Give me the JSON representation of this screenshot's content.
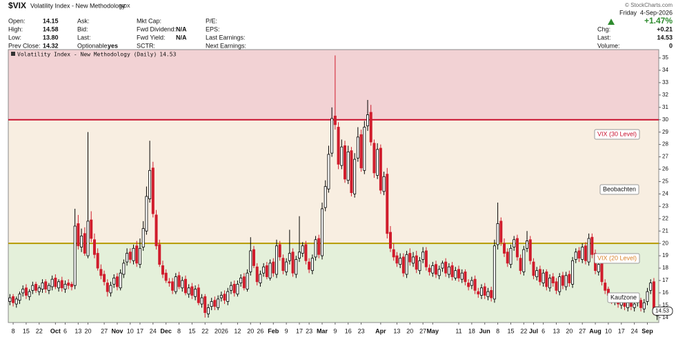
{
  "header": {
    "symbol": "$VIX",
    "name": "Volatility Index - New Methodology",
    "exchange": "INDX",
    "credit": "© StockCharts.com",
    "fields": [
      [
        {
          "label": "Open:",
          "value": "14.15"
        },
        {
          "label": "High:",
          "value": "14.58"
        },
        {
          "label": "Low:",
          "value": "13.80"
        },
        {
          "label": "Prev Close:",
          "value": "14.32"
        }
      ],
      [
        {
          "label": "Ask:"
        },
        {
          "label": "Bid:"
        },
        {
          "label": "Last:"
        },
        {
          "label": "Optionable:",
          "value": "yes"
        }
      ],
      [
        {
          "label": "Mkt Cap:"
        },
        {
          "label": "Fwd Dividend:",
          "value": "N/A"
        },
        {
          "label": "Fwd Yield:",
          "value": "N/A"
        },
        {
          "label": "SCTR:"
        }
      ],
      [
        {
          "label": "P/E:"
        },
        {
          "label": "EPS:"
        },
        {
          "label": "Last Earnings:"
        },
        {
          "label": "Next Earnings:"
        }
      ]
    ],
    "date": "Friday  4-Sep-2026",
    "change_pct": "+1.47%",
    "quote": [
      {
        "label": "Chg:",
        "value": "+0.21"
      },
      {
        "label": "Last:",
        "value": "14.53"
      },
      {
        "label": "Volume:",
        "value": "0"
      }
    ]
  },
  "chart_data": {
    "type": "candlestick",
    "legend": "Volatility Index - New Methodology (Daily)",
    "up_color": "#000000",
    "down_color": "#d01c2c",
    "ylim": [
      13.6,
      35.67
    ],
    "yticks": [
      14,
      15,
      16,
      17,
      18,
      19,
      20,
      21,
      22,
      23,
      24,
      25,
      26,
      27,
      28,
      29,
      30,
      31,
      32,
      33,
      34,
      35
    ],
    "y_axis_side": "right",
    "xlim": [
      -0.5,
      199.5
    ],
    "xticks": [
      {
        "value": 1,
        "label": "8"
      },
      {
        "value": 5,
        "label": "15"
      },
      {
        "value": 9,
        "label": "22"
      },
      {
        "value": 14,
        "label": "Oct"
      },
      {
        "value": 17,
        "label": "6"
      },
      {
        "value": 21,
        "label": "13"
      },
      {
        "value": 24,
        "label": "20"
      },
      {
        "value": 29,
        "label": "27"
      },
      {
        "value": 33,
        "label": "Nov"
      },
      {
        "value": 37,
        "label": "10"
      },
      {
        "value": 40,
        "label": "17"
      },
      {
        "value": 44,
        "label": "24"
      },
      {
        "value": 48,
        "label": "Dec"
      },
      {
        "value": 52,
        "label": "8"
      },
      {
        "value": 56,
        "label": "15"
      },
      {
        "value": 60,
        "label": "22"
      },
      {
        "value": 65,
        "label": "2026"
      },
      {
        "value": 70,
        "label": "12"
      },
      {
        "value": 74,
        "label": "20"
      },
      {
        "value": 77,
        "label": "26"
      },
      {
        "value": 81,
        "label": "Feb"
      },
      {
        "value": 85,
        "label": "9"
      },
      {
        "value": 89,
        "label": "17"
      },
      {
        "value": 92,
        "label": "23"
      },
      {
        "value": 96,
        "label": "Mar"
      },
      {
        "value": 100,
        "label": "9"
      },
      {
        "value": 104,
        "label": "16"
      },
      {
        "value": 108,
        "label": "23"
      },
      {
        "value": 114,
        "label": "Apr"
      },
      {
        "value": 119,
        "label": "13"
      },
      {
        "value": 123,
        "label": "20"
      },
      {
        "value": 127,
        "label": "27"
      },
      {
        "value": 130,
        "label": "May"
      },
      {
        "value": 138,
        "label": "11"
      },
      {
        "value": 142,
        "label": "18"
      },
      {
        "value": 146,
        "label": "Jun"
      },
      {
        "value": 150,
        "label": "8"
      },
      {
        "value": 154,
        "label": "15"
      },
      {
        "value": 158,
        "label": "22"
      },
      {
        "value": 161,
        "label": "Jul"
      },
      {
        "value": 164,
        "label": "6"
      },
      {
        "value": 168,
        "label": "13"
      },
      {
        "value": 172,
        "label": "20"
      },
      {
        "value": 176,
        "label": "27"
      },
      {
        "value": 180,
        "label": "Aug"
      },
      {
        "value": 184,
        "label": "10"
      },
      {
        "value": 188,
        "label": "17"
      },
      {
        "value": 192,
        "label": "24"
      },
      {
        "value": 196,
        "label": "Sep"
      }
    ],
    "levels": [
      {
        "value": 30,
        "label": "VIX (30 Level)",
        "color": "#c8102e",
        "zone_above_color": "#f2d2d4"
      },
      {
        "value": 20,
        "label": "VIX (20 Level)",
        "color": "#b59a00",
        "label_color": "#d9822b",
        "zone_above_color": "#f8eee1",
        "zone_below_color": "#e4f0da"
      }
    ],
    "annotations": [
      "Beobachten",
      "Kaufzone"
    ],
    "open": [
      15.3,
      15.7,
      15.1,
      15.4,
      16.0,
      16.4,
      15.7,
      16.2,
      16.7,
      16.1,
      16.3,
      16.9,
      16.2,
      16.5,
      17.2,
      16.4,
      17.0,
      16.3,
      16.8,
      16.7,
      16.6,
      21.6,
      19.7,
      20.8,
      19.0,
      21.9,
      20.3,
      19.2,
      17.9,
      17.5,
      16.8,
      16.0,
      16.7,
      17.3,
      16.4,
      17.5,
      18.5,
      19.3,
      18.6,
      19.8,
      18.3,
      19.7,
      21.0,
      23.6,
      26.1,
      22.3,
      19.9,
      18.2,
      17.6,
      16.9,
      16.9,
      16.1,
      17.4,
      16.4,
      17.1,
      15.9,
      16.5,
      15.7,
      16.4,
      15.1,
      15.7,
      14.3,
      14.9,
      15.4,
      14.8,
      15.6,
      15.9,
      15.3,
      16.2,
      16.7,
      15.9,
      16.8,
      17.3,
      16.3,
      17.7,
      19.5,
      18.1,
      16.8,
      17.6,
      18.2,
      17.2,
      18.5,
      17.5,
      19.9,
      18.8,
      17.7,
      18.6,
      19.3,
      17.5,
      18.8,
      19.2,
      19.9,
      18.5,
      17.8,
      18.9,
      20.4,
      19.0,
      22.9,
      24.4,
      27.3,
      30.3,
      29.4,
      26.3,
      27.9,
      25.1,
      27.5,
      24.0,
      26.9,
      28.8,
      25.9,
      29.5,
      30.6,
      28.1,
      25.5,
      27.7,
      24.2,
      25.6,
      20.9,
      19.5,
      19.0,
      18.3,
      18.9,
      17.5,
      19.2,
      18.4,
      19.0,
      17.8,
      18.7,
      19.4,
      18.0,
      17.6,
      18.3,
      17.4,
      18.0,
      18.5,
      17.5,
      18.2,
      17.2,
      17.9,
      17.1,
      17.7,
      16.8,
      16.6,
      17.1,
      16.1,
      15.8,
      16.5,
      15.7,
      16.2,
      15.5,
      19.9,
      21.8,
      20.0,
      19.3,
      18.3,
      19.7,
      20.4,
      18.8,
      17.7,
      19.6,
      20.3,
      18.5,
      17.3,
      17.9,
      16.8,
      17.7,
      16.4,
      17.3,
      16.9,
      16.1,
      17.4,
      16.5,
      17.5,
      16.7,
      18.7,
      19.4,
      18.7,
      19.8,
      18.5,
      20.5,
      19.2,
      17.7,
      18.4,
      16.8,
      16.3,
      15.7,
      15.3,
      15.7,
      15.0,
      15.4,
      14.8,
      15.3,
      14.8,
      15.2,
      15.4,
      14.7,
      15.3,
      16.2,
      16.9,
      14.15
    ],
    "high": [
      15.9,
      15.9,
      15.7,
      16.1,
      16.6,
      16.7,
      16.3,
      16.9,
      16.9,
      16.6,
      17.1,
      17.1,
      16.8,
      17.4,
      17.5,
      17.1,
      17.3,
      17.0,
      17.1,
      16.9,
      22.8,
      22.3,
      21.2,
      21.3,
      29.0,
      22.6,
      20.8,
      19.6,
      18.3,
      17.8,
      17.1,
      16.9,
      17.5,
      17.6,
      17.9,
      18.7,
      19.6,
      19.6,
      19.9,
      20.2,
      20.4,
      21.8,
      24.6,
      28.3,
      26.6,
      22.7,
      20.3,
      18.6,
      17.9,
      17.2,
      17.2,
      17.6,
      17.7,
      17.3,
      17.4,
      16.7,
      16.8,
      16.6,
      16.7,
      15.9,
      15.9,
      15.1,
      15.6,
      15.7,
      15.8,
      16.1,
      16.2,
      16.4,
      16.9,
      17.0,
      17.0,
      17.5,
      17.6,
      17.9,
      20.5,
      19.8,
      18.4,
      17.8,
      18.4,
      18.5,
      18.7,
      18.8,
      20.3,
      20.2,
      19.1,
      18.8,
      21.1,
      19.6,
      19.0,
      22.2,
      20.1,
      20.2,
      18.8,
      19.1,
      20.6,
      20.7,
      23.3,
      25.1,
      27.9,
      31.0,
      35.2,
      29.8,
      28.4,
      28.3,
      27.9,
      27.8,
      27.3,
      29.4,
      29.2,
      29.9,
      31.6,
      31.2,
      28.4,
      28.1,
      28.0,
      25.8,
      26.1,
      21.4,
      20.0,
      19.3,
      19.2,
      19.2,
      19.4,
      19.6,
      19.3,
      19.4,
      18.9,
      19.7,
      19.7,
      18.3,
      18.5,
      18.6,
      18.2,
      18.6,
      18.8,
      18.4,
      18.5,
      18.1,
      18.2,
      17.9,
      17.9,
      17.1,
      17.3,
      17.4,
      16.4,
      16.7,
      16.8,
      16.4,
      16.5,
      20.3,
      23.3,
      22.1,
      20.4,
      19.6,
      19.9,
      20.6,
      20.7,
      19.1,
      19.8,
      21.0,
      20.6,
      18.8,
      18.1,
      18.2,
      17.9,
      17.9,
      17.5,
      17.6,
      17.2,
      17.6,
      17.7,
      17.7,
      17.8,
      18.9,
      19.6,
      19.7,
      20.0,
      20.1,
      20.8,
      20.8,
      19.5,
      18.6,
      18.6,
      17.1,
      16.5,
      16.0,
      15.9,
      15.9,
      15.6,
      15.6,
      15.5,
      15.6,
      15.4,
      15.6,
      15.6,
      15.5,
      16.4,
      17.1,
      17.2,
      14.58
    ],
    "low": [
      15.0,
      14.9,
      14.8,
      15.1,
      15.7,
      15.5,
      15.4,
      15.9,
      16.0,
      15.8,
      16.0,
      16.0,
      15.9,
      16.2,
      16.3,
      16.1,
      16.1,
      16.0,
      16.3,
      16.2,
      16.3,
      19.5,
      19.3,
      19.0,
      18.8,
      20.1,
      18.8,
      17.8,
      17.1,
      16.6,
      15.7,
      15.7,
      16.4,
      16.2,
      16.2,
      17.2,
      18.2,
      18.4,
      18.3,
      18.1,
      18.0,
      19.4,
      20.7,
      23.3,
      22.1,
      19.5,
      18.1,
      17.2,
      16.8,
      16.5,
      15.9,
      15.9,
      16.3,
      16.1,
      15.8,
      15.6,
      15.5,
      15.4,
      15.0,
      14.8,
      14.0,
      14.0,
      14.6,
      14.6,
      14.6,
      15.3,
      15.1,
      15.0,
      15.9,
      15.7,
      15.7,
      16.5,
      16.2,
      16.1,
      17.4,
      18.0,
      16.6,
      16.5,
      17.3,
      17.1,
      17.0,
      17.3,
      17.2,
      18.6,
      17.5,
      17.4,
      18.3,
      17.3,
      17.2,
      18.5,
      18.9,
      18.3,
      17.6,
      17.5,
      18.6,
      18.8,
      18.7,
      22.6,
      24.1,
      27.0,
      29.2,
      26.0,
      26.0,
      24.9,
      24.8,
      23.8,
      23.7,
      26.6,
      25.8,
      25.6,
      29.1,
      27.9,
      25.3,
      25.2,
      24.0,
      23.9,
      20.4,
      19.3,
      18.6,
      18.1,
      18.0,
      17.3,
      17.2,
      18.2,
      18.1,
      17.6,
      17.5,
      18.4,
      17.8,
      17.4,
      17.3,
      17.2,
      17.1,
      17.7,
      17.3,
      17.2,
      17.0,
      17.0,
      16.9,
      16.8,
      16.6,
      16.2,
      16.3,
      15.9,
      15.6,
      15.5,
      15.5,
      15.4,
      15.3,
      15.2,
      19.5,
      19.8,
      18.9,
      18.1,
      18.0,
      19.4,
      18.6,
      17.5,
      17.4,
      19.3,
      18.3,
      17.1,
      17.0,
      16.6,
      16.5,
      16.2,
      16.1,
      16.5,
      15.9,
      15.8,
      16.3,
      16.2,
      16.5,
      16.4,
      18.4,
      18.5,
      18.4,
      18.3,
      18.2,
      18.8,
      17.5,
      17.4,
      16.6,
      15.9,
      15.5,
      15.1,
      15.0,
      14.8,
      14.7,
      14.6,
      14.5,
      14.6,
      14.5,
      14.9,
      14.5,
      14.4,
      15.0,
      15.9,
      14.2,
      13.8
    ],
    "close": [
      15.6,
      15.2,
      15.5,
      15.9,
      16.3,
      15.8,
      16.1,
      16.6,
      16.2,
      16.4,
      16.8,
      16.3,
      16.6,
      17.1,
      16.5,
      16.9,
      16.4,
      16.7,
      16.6,
      16.5,
      21.4,
      19.8,
      20.6,
      19.2,
      21.8,
      20.4,
      19.1,
      18.0,
      17.4,
      16.9,
      16.1,
      16.6,
      17.2,
      16.5,
      17.6,
      18.4,
      19.2,
      18.7,
      19.6,
      18.4,
      19.6,
      21.2,
      23.8,
      25.9,
      22.4,
      19.8,
      18.3,
      17.5,
      17.0,
      16.8,
      16.2,
      17.3,
      16.5,
      17.0,
      16.0,
      16.4,
      15.8,
      16.3,
      15.2,
      15.6,
      14.4,
      14.8,
      15.3,
      14.9,
      15.5,
      15.8,
      15.4,
      16.1,
      16.6,
      16.0,
      16.7,
      17.2,
      16.4,
      17.6,
      19.4,
      18.2,
      16.9,
      17.5,
      18.1,
      17.3,
      18.4,
      17.6,
      19.8,
      18.9,
      17.8,
      18.5,
      19.2,
      17.6,
      18.7,
      19.3,
      19.8,
      18.6,
      17.9,
      18.8,
      20.3,
      19.1,
      22.8,
      24.6,
      27.2,
      30.1,
      29.6,
      26.4,
      27.8,
      25.2,
      27.4,
      24.1,
      26.8,
      28.6,
      26.1,
      29.4,
      30.4,
      28.2,
      25.7,
      27.6,
      24.3,
      25.4,
      20.8,
      19.6,
      18.9,
      18.4,
      18.8,
      17.6,
      19.1,
      18.5,
      18.9,
      17.9,
      18.6,
      19.3,
      18.1,
      17.7,
      18.2,
      17.5,
      17.9,
      18.4,
      17.6,
      18.1,
      17.3,
      17.8,
      17.2,
      17.6,
      16.9,
      16.5,
      17.0,
      16.2,
      15.9,
      16.4,
      15.8,
      16.1,
      15.6,
      19.8,
      21.6,
      20.1,
      19.2,
      18.4,
      19.6,
      20.3,
      18.9,
      17.8,
      19.5,
      20.2,
      18.6,
      17.4,
      17.8,
      16.9,
      17.6,
      16.5,
      17.2,
      16.8,
      16.2,
      17.3,
      16.6,
      17.4,
      16.8,
      18.6,
      19.3,
      18.8,
      19.7,
      18.6,
      20.4,
      19.1,
      17.8,
      18.3,
      16.9,
      16.2,
      15.8,
      15.4,
      15.6,
      15.1,
      15.3,
      14.9,
      15.2,
      14.9,
      15.1,
      15.3,
      14.8,
      15.2,
      16.1,
      16.8,
      14.32,
      14.53
    ]
  }
}
